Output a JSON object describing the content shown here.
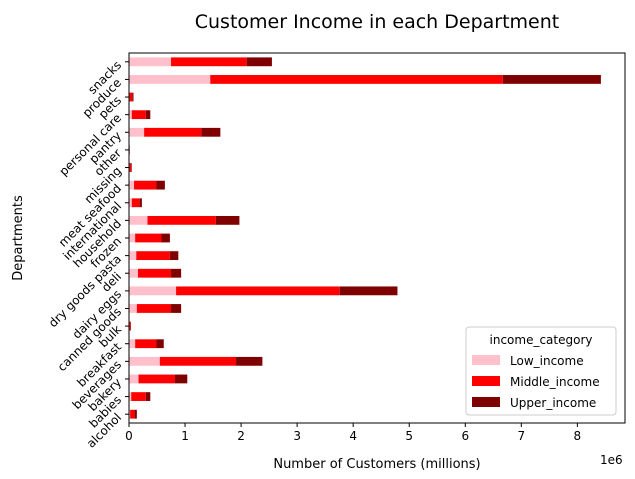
{
  "chart_data": {
    "type": "bar",
    "orientation": "horizontal",
    "stacked": true,
    "title": "Customer Income in each Department",
    "xlabel": "Number of Customers (millions)",
    "ylabel": "Departments",
    "x_scale_note": "1e6",
    "xlim": [
      0,
      8.85
    ],
    "xticks": [
      "0",
      "1",
      "2",
      "3",
      "4",
      "5",
      "6",
      "7",
      "8"
    ],
    "grid": false,
    "legend": {
      "title": "income_category",
      "placement": "lower-right"
    },
    "categories": [
      "alcohol",
      "babies",
      "bakery",
      "beverages",
      "breakfast",
      "bulk",
      "canned goods",
      "dairy eggs",
      "deli",
      "dry goods pasta",
      "frozen",
      "household",
      "international",
      "meat seafood",
      "missing",
      "other",
      "pantry",
      "personal care",
      "pets",
      "produce",
      "snacks"
    ],
    "series": [
      {
        "name": "Low_income",
        "color": "#ffc0cb",
        "values": [
          0.02,
          0.04,
          0.17,
          0.55,
          0.11,
          0.01,
          0.14,
          0.84,
          0.16,
          0.13,
          0.11,
          0.33,
          0.05,
          0.09,
          0.01,
          0.003,
          0.27,
          0.05,
          0.01,
          1.45,
          0.75
        ]
      },
      {
        "name": "Middle_income",
        "color": "#ff0000",
        "values": [
          0.08,
          0.26,
          0.65,
          1.36,
          0.38,
          0.02,
          0.61,
          2.92,
          0.59,
          0.6,
          0.47,
          1.22,
          0.14,
          0.4,
          0.03,
          0.007,
          1.02,
          0.25,
          0.05,
          5.22,
          1.35
        ]
      },
      {
        "name": "Upper_income",
        "color": "#7f0000",
        "values": [
          0.04,
          0.08,
          0.22,
          0.47,
          0.13,
          0.005,
          0.18,
          1.03,
          0.18,
          0.15,
          0.15,
          0.42,
          0.04,
          0.15,
          0.01,
          0.003,
          0.34,
          0.08,
          0.02,
          1.75,
          0.45
        ]
      }
    ]
  }
}
